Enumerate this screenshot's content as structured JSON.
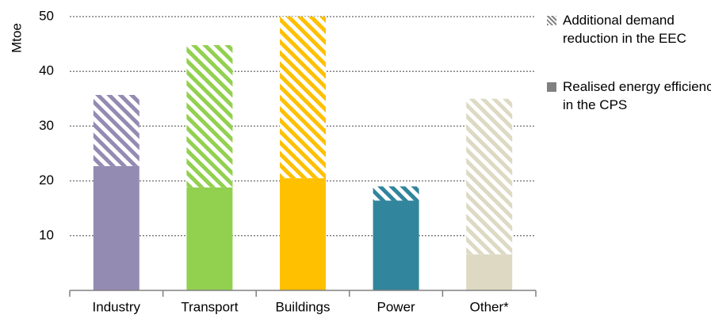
{
  "chart_data": {
    "type": "stacked-bar",
    "y_label": "Mtoe",
    "categories": [
      "Industry",
      "Transport",
      "Buildings",
      "Power",
      "Other*"
    ],
    "category_colors": [
      "#948bb3",
      "#92d050",
      "#ffc000",
      "#31859c",
      "#ddd9c3"
    ],
    "series": [
      {
        "name": "Realised energy efficiency in the CPS",
        "color": "#808080",
        "hatched": false,
        "values": [
          22.7,
          18.8,
          20.5,
          16.4,
          6.6
        ]
      },
      {
        "name": "Additional demand reduction in the EEC",
        "color": "#808080",
        "hatched": true,
        "values": [
          13.0,
          26.0,
          29.5,
          2.6,
          28.4
        ]
      }
    ],
    "legend_order": [
      1,
      0
    ],
    "ylim": [
      0,
      50
    ],
    "yticks": [
      10,
      20,
      30,
      40,
      50
    ],
    "grid": true
  }
}
